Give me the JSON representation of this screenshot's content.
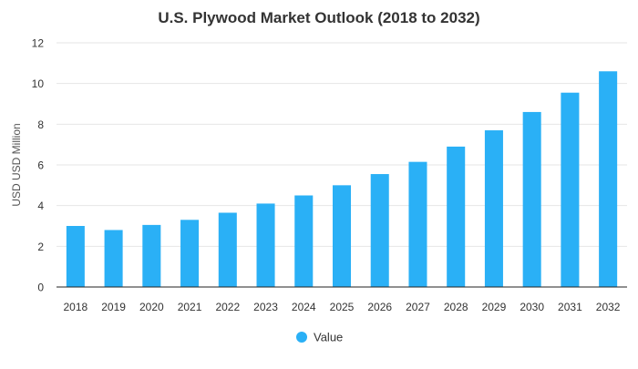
{
  "chart_data": {
    "type": "bar",
    "title": "U.S. Plywood Market Outlook (2018 to 2032)",
    "ylabel": "USD USD Million",
    "xlabel": "",
    "categories": [
      "2018",
      "2019",
      "2020",
      "2021",
      "2022",
      "2023",
      "2024",
      "2025",
      "2026",
      "2027",
      "2028",
      "2029",
      "2030",
      "2031",
      "2032"
    ],
    "series": [
      {
        "name": "Value",
        "values": [
          3.0,
          2.8,
          3.05,
          3.3,
          3.65,
          4.1,
          4.5,
          5.0,
          5.55,
          6.15,
          6.9,
          7.7,
          8.6,
          9.55,
          10.6
        ]
      }
    ],
    "ylim": [
      0,
      12
    ],
    "yticks": [
      0,
      2,
      4,
      6,
      8,
      10,
      12
    ],
    "grid": true,
    "legend_position": "bottom-center",
    "bar_color": "#2ab0f6",
    "grid_color": "#e6e6e6",
    "axis_color": "#222222"
  }
}
